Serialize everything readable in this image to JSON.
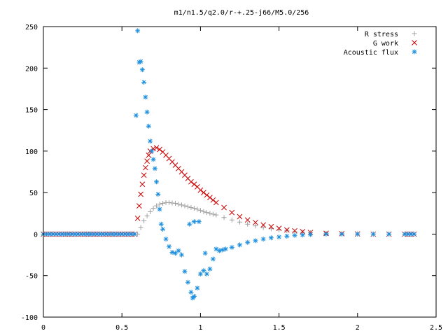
{
  "chart_data": {
    "type": "scatter",
    "title": "m1/n1.5/q2.0/r-+.25-j66/M5.0/256",
    "xlabel": "",
    "ylabel": "",
    "xlim": [
      0,
      2.5
    ],
    "ylim": [
      -100,
      250
    ],
    "xticks": [
      "0",
      "0.5",
      "1",
      "1.5",
      "2",
      "2.5"
    ],
    "yticks": [
      "-100",
      "-50",
      "0",
      "50",
      "100",
      "150",
      "200",
      "250"
    ],
    "grid": false,
    "legend": "top-right",
    "series": [
      {
        "name": "R stress",
        "marker": "plus",
        "color": "#a0a0a0",
        "points": [
          [
            0.6,
            0
          ],
          [
            0.62,
            8
          ],
          [
            0.64,
            16
          ],
          [
            0.66,
            22
          ],
          [
            0.68,
            27
          ],
          [
            0.7,
            31
          ],
          [
            0.72,
            34
          ],
          [
            0.74,
            36
          ],
          [
            0.76,
            37
          ],
          [
            0.78,
            38
          ],
          [
            0.8,
            38
          ],
          [
            0.82,
            37.5
          ],
          [
            0.84,
            37
          ],
          [
            0.86,
            36
          ],
          [
            0.88,
            35
          ],
          [
            0.9,
            34
          ],
          [
            0.92,
            33
          ],
          [
            0.94,
            32
          ],
          [
            0.96,
            31
          ],
          [
            0.98,
            30
          ],
          [
            1.0,
            28.5
          ],
          [
            1.02,
            27
          ],
          [
            1.04,
            26
          ],
          [
            1.06,
            25
          ],
          [
            1.08,
            24
          ],
          [
            1.1,
            23
          ],
          [
            1.15,
            20
          ],
          [
            1.2,
            17
          ],
          [
            1.25,
            14.5
          ],
          [
            1.3,
            12
          ],
          [
            1.35,
            10
          ],
          [
            1.4,
            8
          ],
          [
            1.45,
            6.5
          ],
          [
            1.5,
            5
          ],
          [
            1.55,
            4
          ],
          [
            1.6,
            3
          ],
          [
            1.65,
            2.3
          ],
          [
            1.7,
            1.7
          ],
          [
            1.8,
            1
          ],
          [
            1.9,
            0.5
          ],
          [
            2.0,
            0.3
          ],
          [
            2.1,
            0.1
          ],
          [
            2.2,
            0
          ],
          [
            2.3,
            0
          ]
        ]
      },
      {
        "name": "G work",
        "marker": "cross",
        "color": "#cc0000",
        "points": [
          [
            0.6,
            19
          ],
          [
            0.61,
            34
          ],
          [
            0.62,
            48
          ],
          [
            0.63,
            60
          ],
          [
            0.64,
            71
          ],
          [
            0.65,
            80
          ],
          [
            0.66,
            88
          ],
          [
            0.67,
            95
          ],
          [
            0.68,
            100
          ],
          [
            0.7,
            103
          ],
          [
            0.72,
            104
          ],
          [
            0.74,
            102
          ],
          [
            0.76,
            99
          ],
          [
            0.78,
            95
          ],
          [
            0.8,
            91
          ],
          [
            0.82,
            87
          ],
          [
            0.84,
            83
          ],
          [
            0.86,
            79
          ],
          [
            0.88,
            75
          ],
          [
            0.9,
            71
          ],
          [
            0.92,
            67
          ],
          [
            0.94,
            63
          ],
          [
            0.96,
            60
          ],
          [
            0.98,
            57
          ],
          [
            1.0,
            53
          ],
          [
            1.02,
            50
          ],
          [
            1.04,
            47
          ],
          [
            1.06,
            44
          ],
          [
            1.08,
            41
          ],
          [
            1.1,
            38
          ],
          [
            1.15,
            32
          ],
          [
            1.2,
            26
          ],
          [
            1.25,
            21
          ],
          [
            1.3,
            17
          ],
          [
            1.35,
            14
          ],
          [
            1.4,
            11
          ],
          [
            1.45,
            9
          ],
          [
            1.5,
            7
          ],
          [
            1.55,
            5
          ],
          [
            1.6,
            4
          ],
          [
            1.65,
            3
          ],
          [
            1.7,
            2
          ],
          [
            1.8,
            1
          ],
          [
            1.9,
            0.5
          ],
          [
            2.0,
            0.2
          ],
          [
            2.1,
            0
          ],
          [
            2.2,
            0
          ],
          [
            2.3,
            0
          ]
        ]
      },
      {
        "name": "Acoustic flux",
        "marker": "star",
        "color": "#1f8fdf",
        "points": [
          [
            0.59,
            143
          ],
          [
            0.6,
            245
          ],
          [
            0.61,
            207
          ],
          [
            0.62,
            208
          ],
          [
            0.63,
            198
          ],
          [
            0.64,
            183
          ],
          [
            0.65,
            165
          ],
          [
            0.66,
            147
          ],
          [
            0.67,
            130
          ],
          [
            0.68,
            112
          ],
          [
            0.69,
            100
          ],
          [
            0.7,
            90
          ],
          [
            0.71,
            79
          ],
          [
            0.72,
            63
          ],
          [
            0.73,
            48
          ],
          [
            0.74,
            30
          ],
          [
            0.75,
            12
          ],
          [
            0.76,
            6
          ],
          [
            0.78,
            -6
          ],
          [
            0.8,
            -15
          ],
          [
            0.82,
            -22
          ],
          [
            0.84,
            -23
          ],
          [
            0.86,
            -20
          ],
          [
            0.88,
            -25
          ],
          [
            0.9,
            -45
          ],
          [
            0.92,
            -58
          ],
          [
            0.94,
            -70
          ],
          [
            0.95,
            -77
          ],
          [
            0.96,
            -75
          ],
          [
            0.98,
            -65
          ],
          [
            1.0,
            -48
          ],
          [
            1.02,
            -44
          ],
          [
            1.04,
            -48
          ],
          [
            1.06,
            -42
          ],
          [
            1.08,
            -30
          ],
          [
            1.1,
            -18
          ],
          [
            1.12,
            -20
          ],
          [
            1.14,
            -19
          ],
          [
            1.16,
            -18
          ],
          [
            1.2,
            -16
          ],
          [
            1.25,
            -13
          ],
          [
            1.3,
            -10
          ],
          [
            1.35,
            -8
          ],
          [
            1.4,
            -6
          ],
          [
            1.45,
            -4.5
          ],
          [
            1.5,
            -3.5
          ],
          [
            1.55,
            -2.5
          ],
          [
            1.6,
            -1.5
          ],
          [
            1.65,
            -1
          ],
          [
            1.7,
            -0.5
          ],
          [
            1.8,
            0
          ],
          [
            1.9,
            0
          ],
          [
            2.0,
            0
          ],
          [
            2.1,
            0
          ],
          [
            2.2,
            0
          ],
          [
            2.3,
            0
          ]
        ]
      }
    ],
    "annotation_points": {
      "note": "",
      "acoustic_extra": [
        [
          0.93,
          12
        ],
        [
          0.96,
          15
        ],
        [
          0.99,
          15
        ],
        [
          1.03,
          -23
        ]
      ]
    }
  }
}
